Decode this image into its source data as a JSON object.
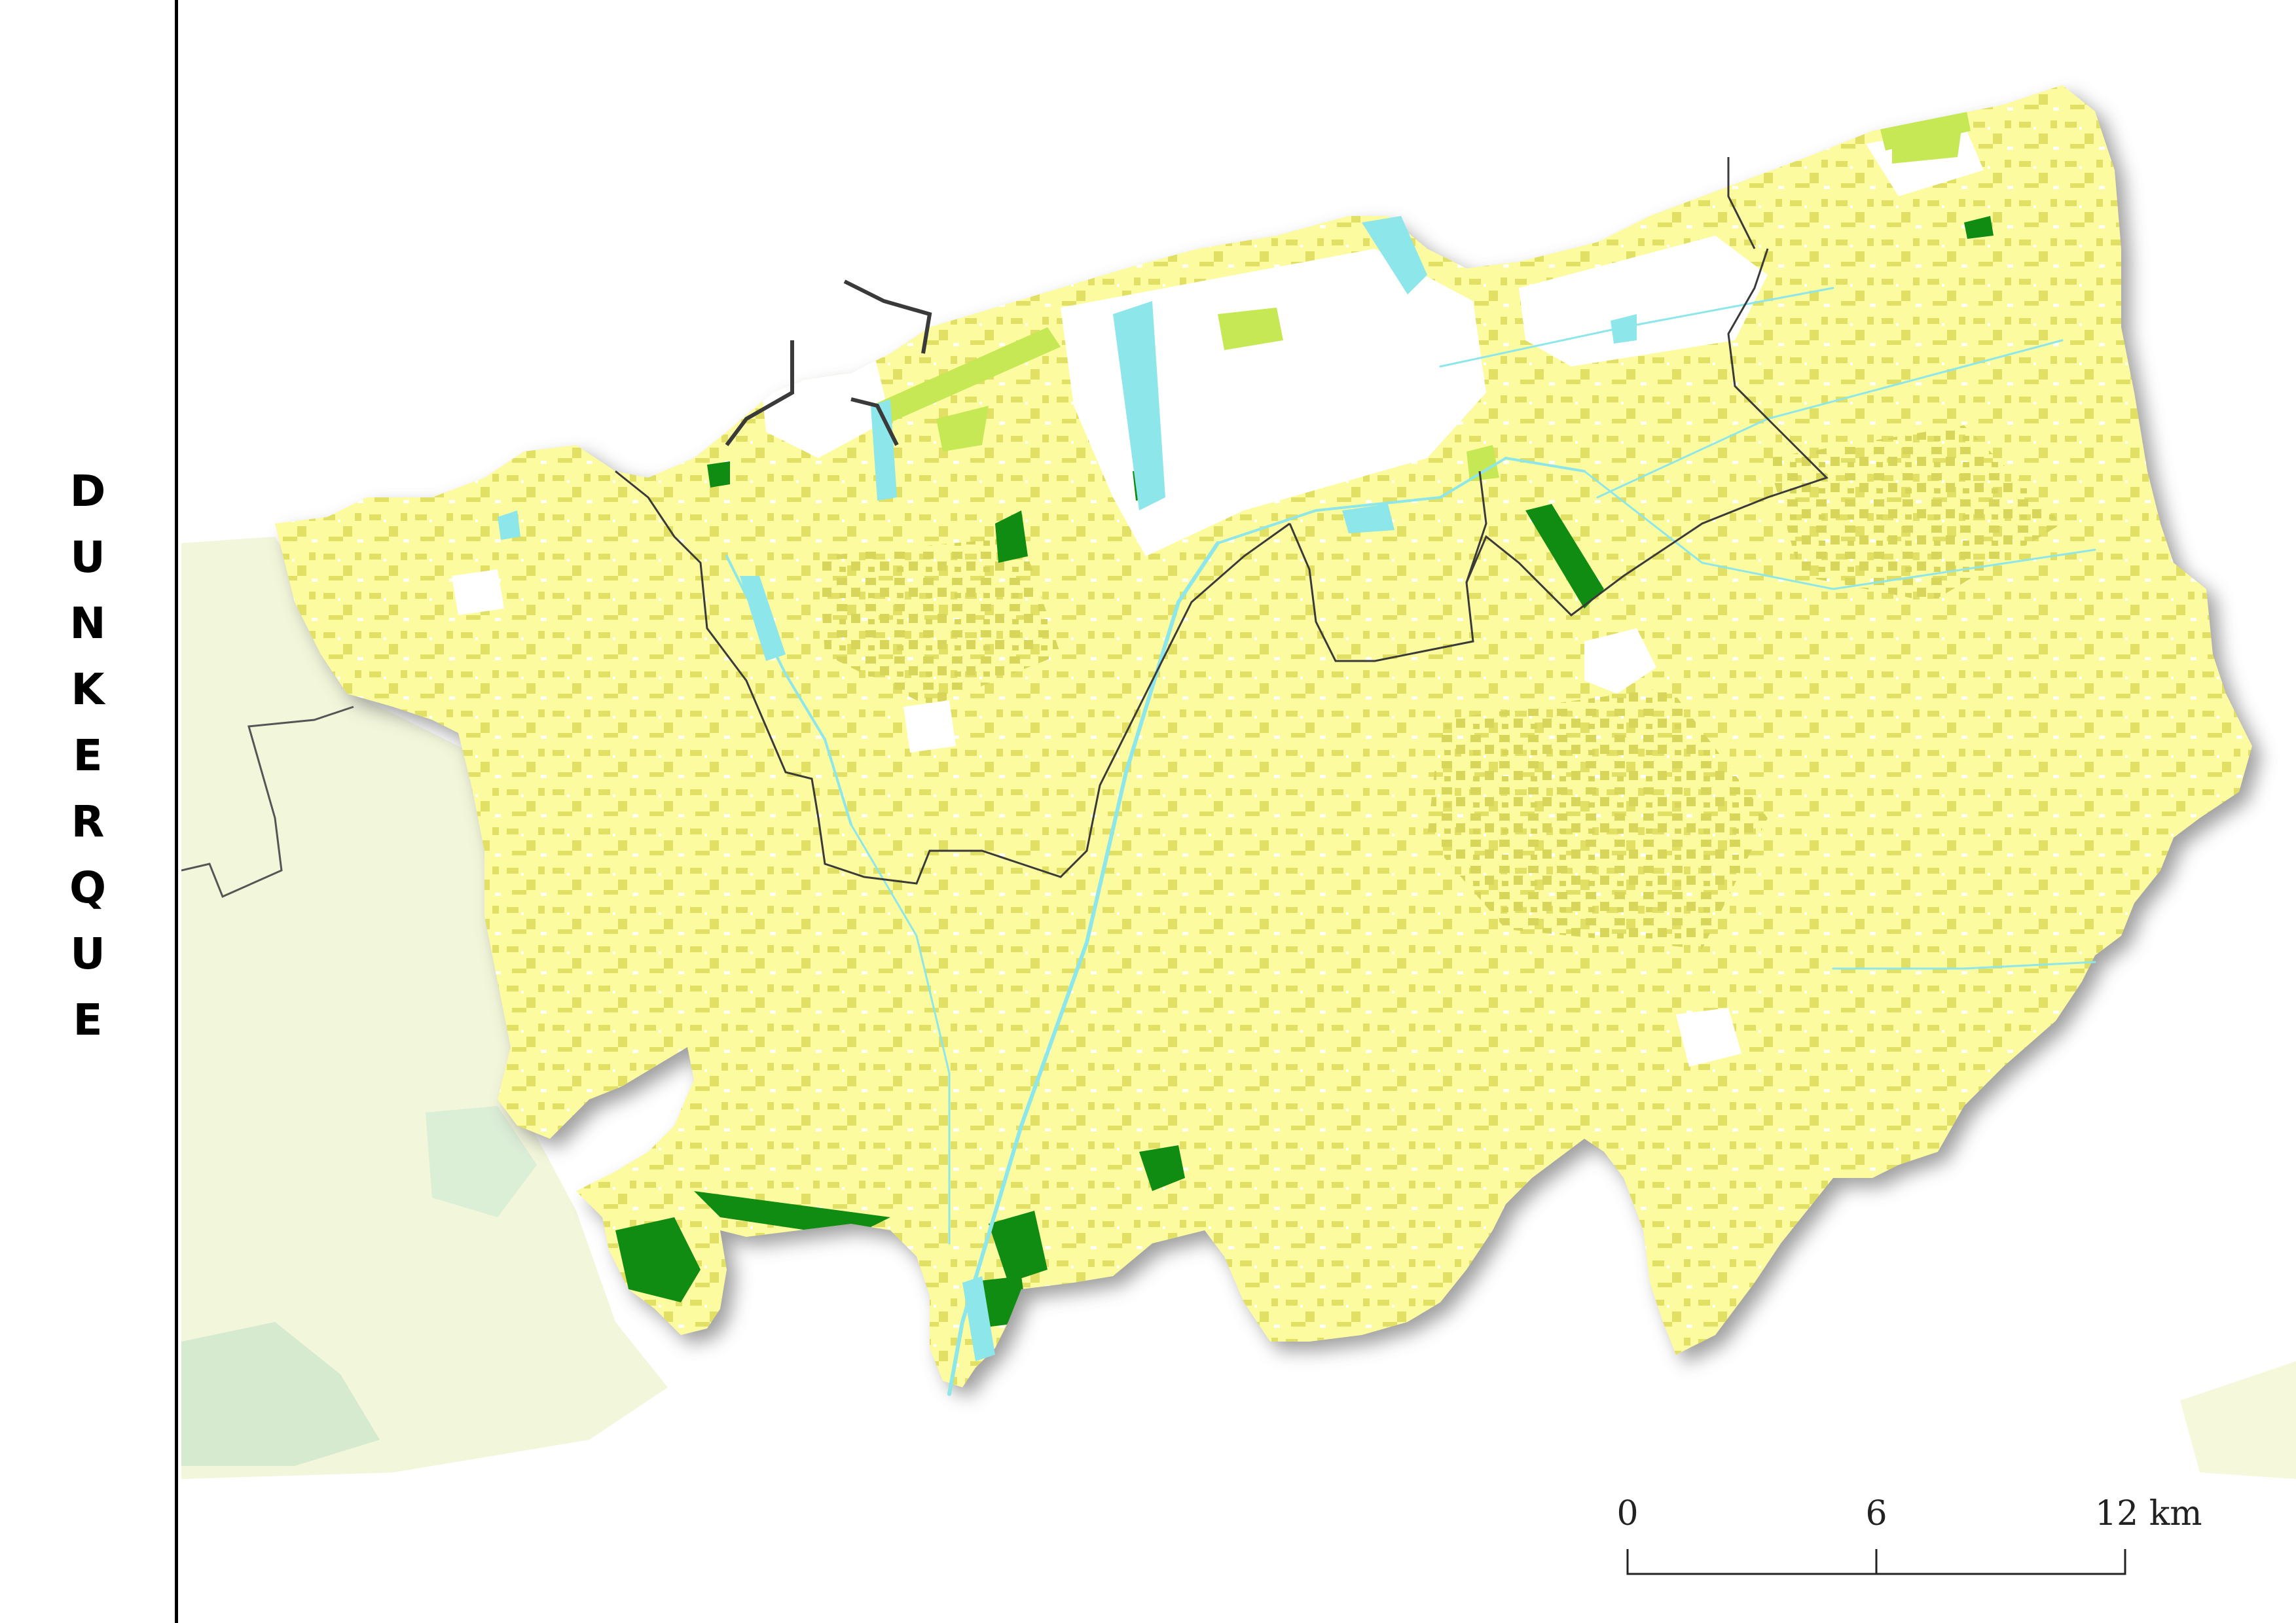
{
  "title_letters": [
    "D",
    "U",
    "N",
    "K",
    "E",
    "R",
    "Q",
    "U",
    "E"
  ],
  "scale_bar": {
    "labels": [
      "0",
      "6",
      "12 km"
    ]
  },
  "colors": {
    "agricultural_land": "#fdfb9f",
    "mixed_crops": "#dedc5d",
    "grassland": "#c6e854",
    "forest": "#118c13",
    "water": "#8de6ea",
    "urban": "#ffffff",
    "boundary": "#3a3a3a",
    "shadow": "#9a9a9a",
    "neighbour_region": "#f3f6dc"
  },
  "map_layers": [
    "agricultural-land",
    "mixed-crops",
    "grassland",
    "forest",
    "water",
    "urban",
    "municipal-boundaries"
  ]
}
